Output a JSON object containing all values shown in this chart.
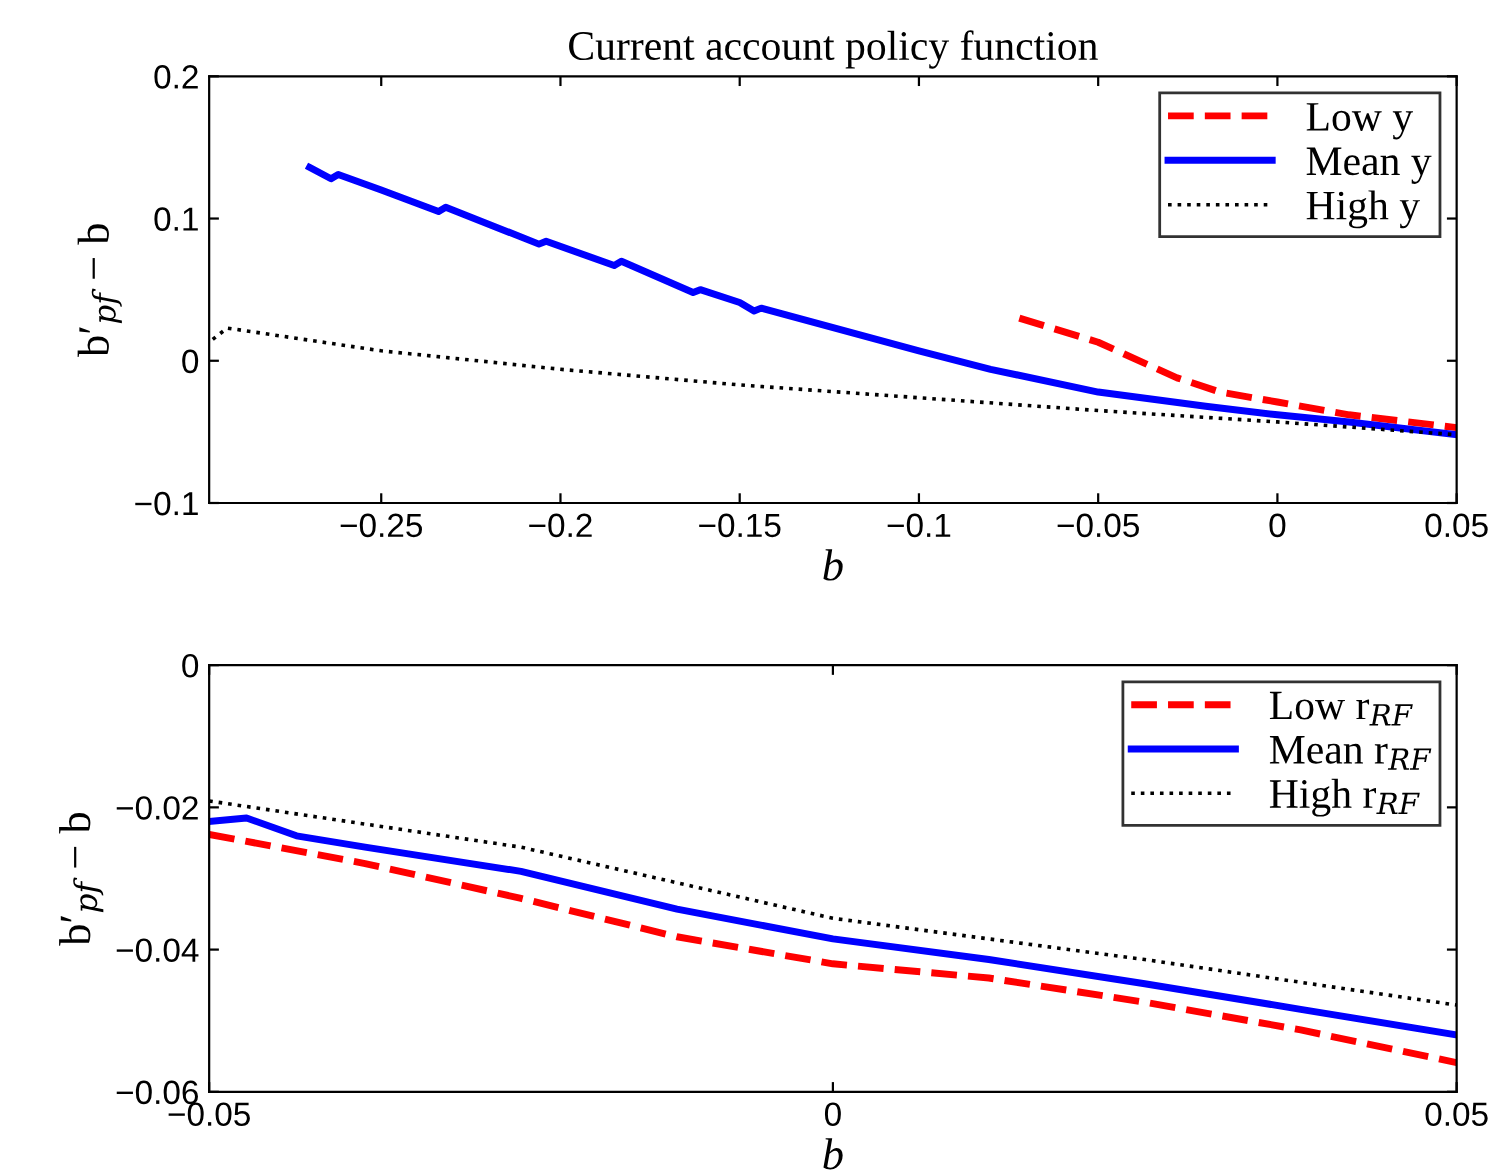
{
  "chart_data": [
    {
      "type": "line",
      "title": "Current account policy function",
      "xlabel": "b",
      "ylabel": "b′$_{pf}$ − b",
      "xlim": [
        -0.298,
        0.05
      ],
      "xticks": [
        -0.25,
        -0.2,
        -0.15,
        -0.1,
        -0.05,
        0,
        0.05
      ],
      "ylim": [
        -0.1,
        0.2
      ],
      "yticks": [
        -0.1,
        0,
        0.1,
        0.2
      ],
      "legend": "top right",
      "grid": false,
      "series": [
        {
          "name": "Low y",
          "color": "#ff0000",
          "line_style": "dashed",
          "x": [
            -0.072,
            -0.05,
            -0.028,
            -0.016,
            0,
            0.02,
            0.05
          ],
          "values": [
            0.03,
            0.013,
            -0.012,
            -0.022,
            -0.029,
            -0.038,
            -0.047
          ]
        },
        {
          "name": "Mean y",
          "color": "#0000ff",
          "line_style": "solid",
          "x": [
            -0.27,
            -0.264,
            -0.262,
            -0.25,
            -0.234,
            -0.232,
            -0.206,
            -0.204,
            -0.185,
            -0.183,
            -0.163,
            -0.161,
            -0.15,
            -0.146,
            -0.144,
            -0.1,
            -0.08,
            -0.05,
            -0.02,
            0,
            0.02,
            0.05
          ],
          "values": [
            0.136,
            0.128,
            0.131,
            0.12,
            0.105,
            0.108,
            0.082,
            0.084,
            0.067,
            0.07,
            0.048,
            0.05,
            0.041,
            0.035,
            0.037,
            0.007,
            -0.006,
            -0.022,
            -0.032,
            -0.038,
            -0.043,
            -0.052
          ]
        },
        {
          "name": "High y",
          "color": "#000000",
          "line_style": "dotted",
          "x": [
            -0.297,
            -0.293,
            -0.25,
            -0.2,
            -0.15,
            -0.1,
            -0.05,
            0,
            0.05
          ],
          "values": [
            0.015,
            0.023,
            0.007,
            -0.006,
            -0.017,
            -0.026,
            -0.035,
            -0.043,
            -0.052
          ]
        }
      ]
    },
    {
      "type": "line",
      "xlabel": "b",
      "ylabel": "b′$_{pf}$ − b",
      "xlim": [
        -0.05,
        0.05
      ],
      "xticks": [
        -0.05,
        0,
        0.05
      ],
      "ylim": [
        -0.06,
        0
      ],
      "yticks": [
        -0.06,
        -0.04,
        -0.02,
        0
      ],
      "legend": "top right",
      "grid": false,
      "series": [
        {
          "name": "Low r$_{RF}$",
          "color": "#ff0000",
          "line_style": "dashed",
          "x": [
            -0.05,
            -0.0375,
            -0.025,
            -0.0125,
            0,
            0.0125,
            0.025,
            0.0375,
            0.05
          ],
          "values": [
            -0.0238,
            -0.0279,
            -0.0328,
            -0.0382,
            -0.042,
            -0.044,
            -0.0474,
            -0.0513,
            -0.0559
          ]
        },
        {
          "name": "Mean r$_{RF}$",
          "color": "#0000ff",
          "line_style": "solid",
          "x": [
            -0.05,
            -0.047,
            -0.043,
            -0.0375,
            -0.025,
            -0.0125,
            0,
            0.0125,
            0.025,
            0.0375,
            0.05
          ],
          "values": [
            -0.022,
            -0.0215,
            -0.024,
            -0.0256,
            -0.029,
            -0.0343,
            -0.0385,
            -0.0414,
            -0.0448,
            -0.0484,
            -0.052
          ]
        },
        {
          "name": "High r$_{RF}$",
          "color": "#000000",
          "line_style": "dotted",
          "x": [
            -0.05,
            -0.025,
            0,
            0.025,
            0.05
          ],
          "values": [
            -0.0191,
            -0.0256,
            -0.0356,
            -0.0414,
            -0.0478
          ]
        }
      ]
    }
  ]
}
